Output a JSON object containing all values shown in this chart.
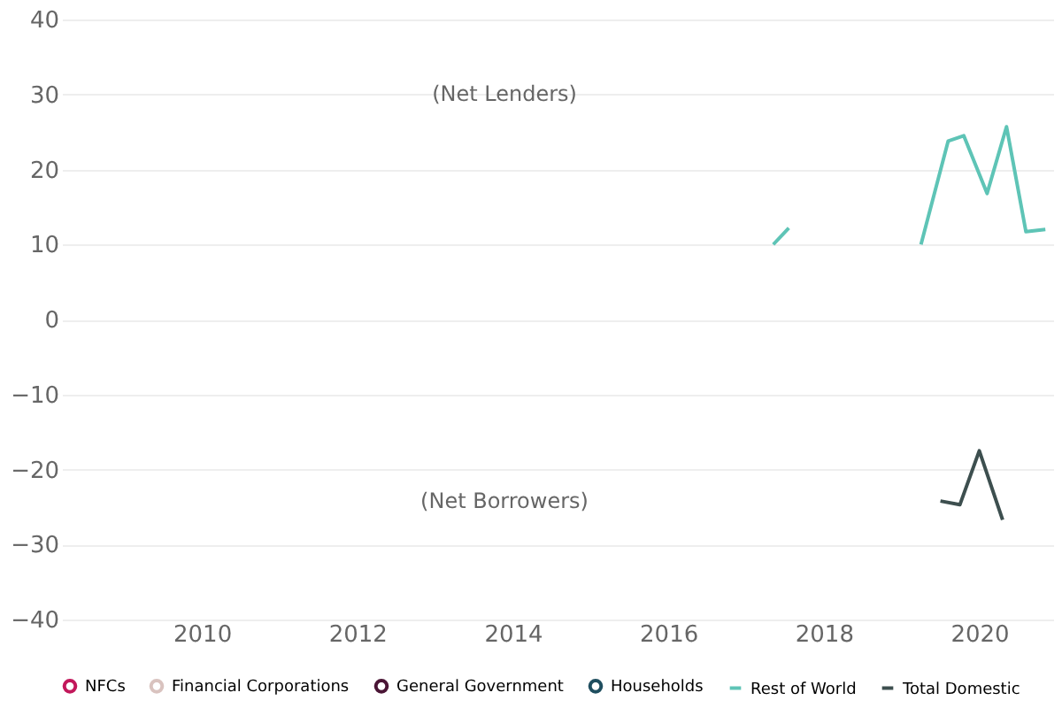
{
  "chart_data": {
    "type": "bar",
    "xlim": [
      2008.2,
      2020.95
    ],
    "xticks": [
      2010,
      2012,
      2014,
      2016,
      2018,
      2020
    ],
    "ylim": [
      -40,
      40
    ],
    "yticks": [
      -40,
      -30,
      -20,
      -10,
      0,
      10,
      20,
      30,
      40
    ],
    "grid": "y",
    "legend": "bottom",
    "annotations": [
      "(Net Lenders)",
      "(Net Borrowers)"
    ],
    "series": [
      {
        "name": "NFCs",
        "color": "#c2185b"
      },
      {
        "name": "Financial Corporations",
        "color": "#d9c3bf"
      },
      {
        "name": "General Government",
        "color": "#4a1535"
      },
      {
        "name": "Households",
        "color": "#1f4e5f"
      },
      {
        "name": "Rest of World",
        "color": "#5ec4b6",
        "type": "line",
        "x": [
          2017.35,
          2017.55,
          2017.8,
          2019.25,
          2019.6,
          2019.8,
          2020.1,
          2020.35,
          2020.6,
          2020.85
        ],
        "values": [
          10,
          12.2,
          null,
          10,
          23.8,
          24.5,
          16.8,
          25.7,
          11.7,
          12
        ]
      },
      {
        "name": "Total Domestic",
        "color": "#3d4f4f",
        "type": "line",
        "x": [
          2019.5,
          2019.75,
          2020.0,
          2020.3
        ],
        "values": [
          -24.2,
          -24.7,
          -17.5,
          -26.7
        ]
      }
    ]
  }
}
